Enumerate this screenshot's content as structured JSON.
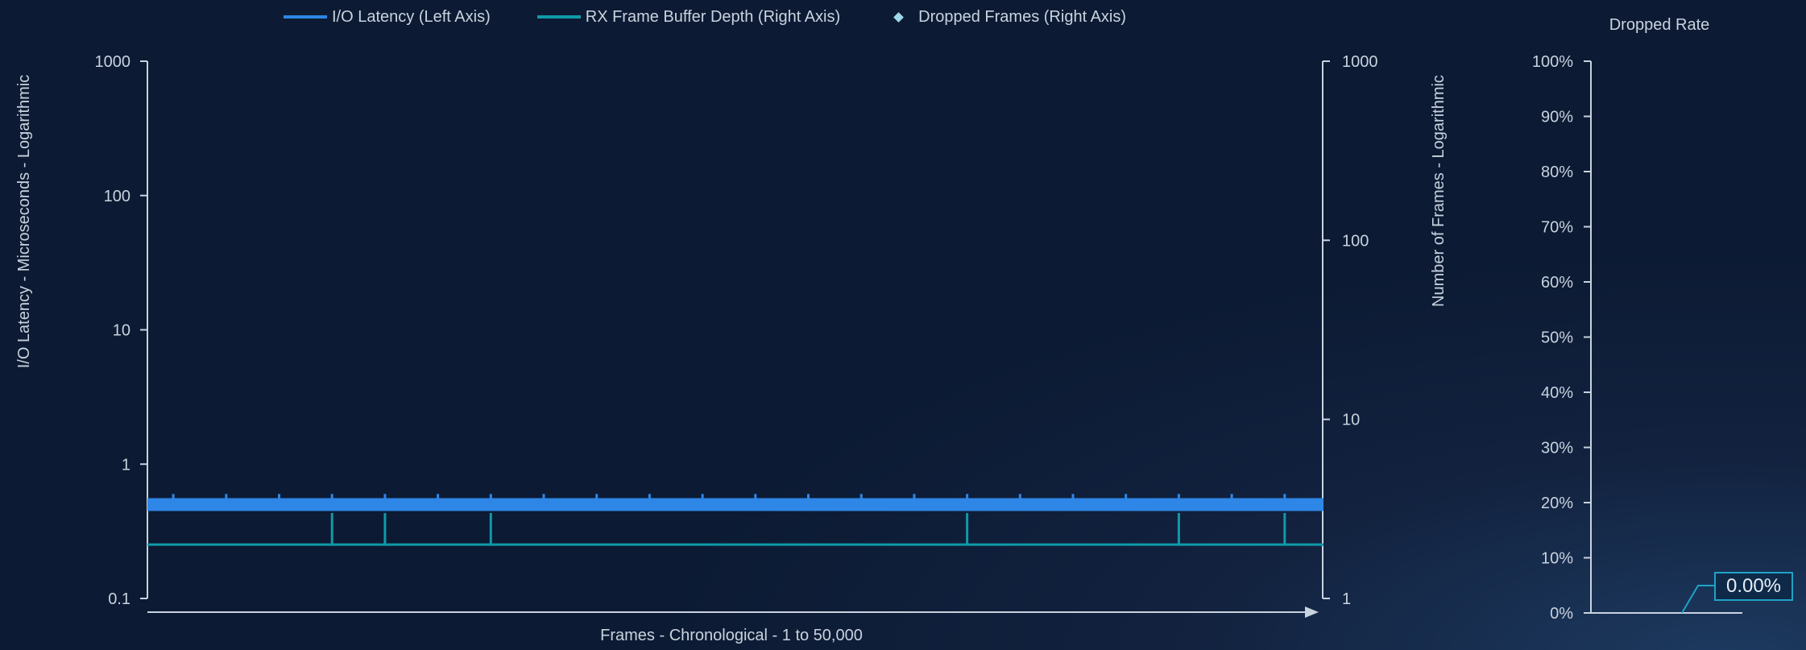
{
  "legend": {
    "latency": "I/O Latency (Left Axis)",
    "buffer": "RX Frame Buffer Depth (Right Axis)",
    "dropped": "Dropped Frames (Right Axis)"
  },
  "axes": {
    "left_label": "I/O Latency - Microseconds - Logarithmic",
    "right_label": "Number of Frames - Logarithmic",
    "x_label": "Frames - Chronological - 1 to 50,000"
  },
  "rate": {
    "title": "Dropped Rate",
    "value_label": "0.00%"
  },
  "colors": {
    "latency": "#2e86e6",
    "buffer": "#109aa8",
    "dropped": "#9fd8ea",
    "axis": "#c9d3df",
    "callout": "#1fa2c8"
  },
  "chart_data": [
    {
      "type": "line",
      "x_range": [
        1,
        50000
      ],
      "left_axis": {
        "scale": "log",
        "ylim": [
          0.1,
          1000
        ],
        "ticks": [
          "0.1",
          "1",
          "10",
          "100",
          "1000"
        ]
      },
      "right_axis": {
        "scale": "log",
        "ylim": [
          1,
          1000
        ],
        "ticks": [
          "1",
          "10",
          "100",
          "1000"
        ]
      },
      "series": [
        {
          "name": "I/O Latency (Left Axis)",
          "axis": "left",
          "baseline": 0.5,
          "spike_value": 0.6,
          "spike_x": [
            1100,
            3350,
            5600,
            7850,
            10100,
            12350,
            14600,
            16850,
            19100,
            21350,
            23600,
            25850,
            28100,
            30350,
            32600,
            34850,
            37100,
            39350,
            41600,
            43850,
            46100,
            48350
          ]
        },
        {
          "name": "RX Frame Buffer Depth (Right Axis)",
          "axis": "right",
          "baseline": 2,
          "peak_value": 3,
          "peak_x": [
            7850,
            10100,
            14600,
            34850,
            43850,
            48350
          ]
        },
        {
          "name": "Dropped Frames (Right Axis)",
          "axis": "right",
          "values": []
        }
      ]
    },
    {
      "type": "bar",
      "title": "Dropped Rate",
      "ylim": [
        0,
        100
      ],
      "ticks": [
        "0%",
        "10%",
        "20%",
        "30%",
        "40%",
        "50%",
        "60%",
        "70%",
        "80%",
        "90%",
        "100%"
      ],
      "values": [
        0
      ]
    }
  ]
}
